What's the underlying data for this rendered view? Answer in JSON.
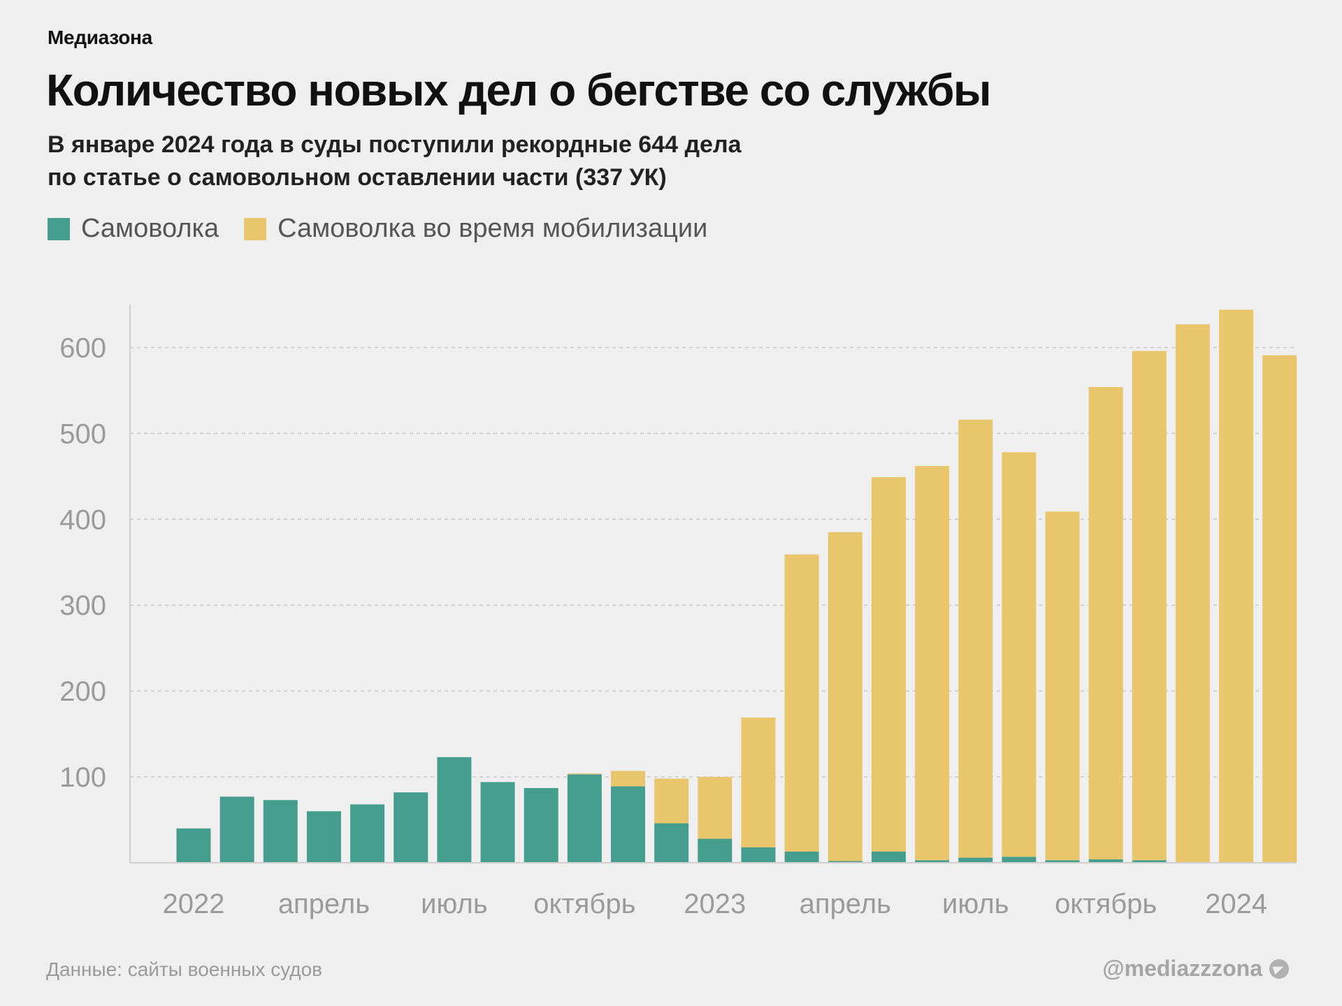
{
  "header": {
    "brand": "Медиазона",
    "title": "Количество новых дел о бегстве со службы",
    "subtitle_line1": "В январе 2024 года в суды поступили рекордные 644 дела",
    "subtitle_line2": "по статье о самовольном оставлении части (337 УК)"
  },
  "legend": [
    {
      "label": "Самоволка",
      "color": "#449d8d"
    },
    {
      "label": "Самоволка во время мобилизации",
      "color": "#e9c56b"
    }
  ],
  "footer": {
    "source": "Данные: сайты военных судов",
    "handle": "@mediazzzona",
    "icon": "telegram-icon"
  },
  "chart_data": {
    "type": "bar",
    "stacked": true,
    "ylim": [
      0,
      650
    ],
    "yticks": [
      100,
      200,
      300,
      400,
      500,
      600
    ],
    "grid": true,
    "legend_position": "top-left",
    "categories": [
      "2022-01",
      "2022-02",
      "2022-03",
      "2022-04",
      "2022-05",
      "2022-06",
      "2022-07",
      "2022-08",
      "2022-09",
      "2022-10",
      "2022-11",
      "2022-12",
      "2023-01",
      "2023-02",
      "2023-03",
      "2023-04",
      "2023-05",
      "2023-06",
      "2023-07",
      "2023-08",
      "2023-09",
      "2023-10",
      "2023-11",
      "2023-12",
      "2024-01",
      "2024-02"
    ],
    "x_tick_labels": [
      {
        "category": "2022-01",
        "label": "2022"
      },
      {
        "category": "2022-04",
        "label": "апрель"
      },
      {
        "category": "2022-07",
        "label": "июль"
      },
      {
        "category": "2022-10",
        "label": "октябрь"
      },
      {
        "category": "2023-01",
        "label": "2023"
      },
      {
        "category": "2023-04",
        "label": "апрель"
      },
      {
        "category": "2023-07",
        "label": "июль"
      },
      {
        "category": "2023-10",
        "label": "октябрь"
      },
      {
        "category": "2024-01",
        "label": "2024"
      }
    ],
    "series": [
      {
        "name": "Самоволка",
        "color": "#449d8d",
        "values": [
          40,
          77,
          73,
          60,
          68,
          82,
          123,
          94,
          87,
          103,
          89,
          46,
          28,
          18,
          13,
          2,
          13,
          3,
          6,
          7,
          3,
          4,
          3,
          0,
          0,
          0
        ]
      },
      {
        "name": "Самоволка во время мобилизации",
        "color": "#e9c56b",
        "values": [
          0,
          0,
          0,
          0,
          0,
          0,
          0,
          0,
          0,
          1,
          18,
          52,
          72,
          151,
          346,
          383,
          436,
          459,
          510,
          471,
          406,
          550,
          593,
          627,
          644,
          591
        ]
      }
    ]
  }
}
